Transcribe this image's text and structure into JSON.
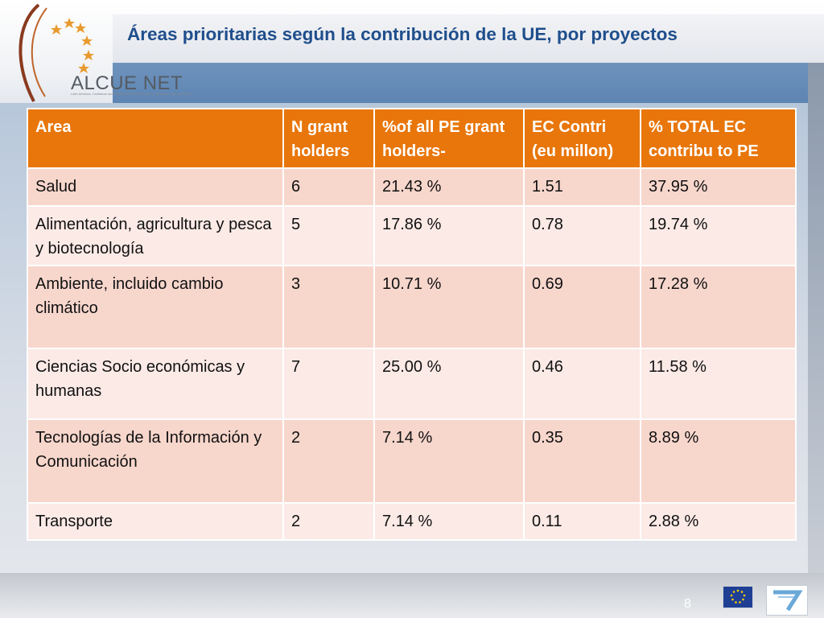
{
  "slide": {
    "title": "Áreas prioritarias según la contribución de la UE, por proyectos",
    "page_number": "8"
  },
  "logo": {
    "name": "ALCUE NET",
    "tagline": "Latin America, Caribbean and European Union Network on Research and Innovation"
  },
  "colors": {
    "header_orange": "#e8760b",
    "row_dark": "#f7d6cc",
    "row_light": "#fbeae6",
    "title_blue": "#1f4e8c"
  },
  "table": {
    "headers": [
      "Area",
      "N grant holders",
      "%of all PE grant holders-",
      "EC Contri (eu millon)",
      "% TOTAL EC contribu to PE"
    ],
    "rows": [
      [
        "Salud",
        "6",
        "21.43 %",
        "1.51",
        "37.95 %"
      ],
      [
        "Alimentación, agricultura y pesca y biotecnología",
        "5",
        "17.86 %",
        "0.78",
        "19.74 %"
      ],
      [
        "Ambiente, incluido cambio climático",
        "3",
        "10.71 %",
        "0.69",
        "17.28 %"
      ],
      [
        "Ciencias  Socio económicas y humanas",
        "7",
        "25.00 %",
        "0.46",
        "11.58 %"
      ],
      [
        "Tecnologías  de la Información  y Comunicación",
        "2",
        "7.14  %",
        "0.35",
        "8.89 %"
      ],
      [
        "Transporte",
        "2",
        "7.14 %",
        "0.11",
        "2.88 %"
      ]
    ]
  },
  "footer": {
    "logos": [
      "european-commission-logo",
      "fp7-logo"
    ]
  }
}
